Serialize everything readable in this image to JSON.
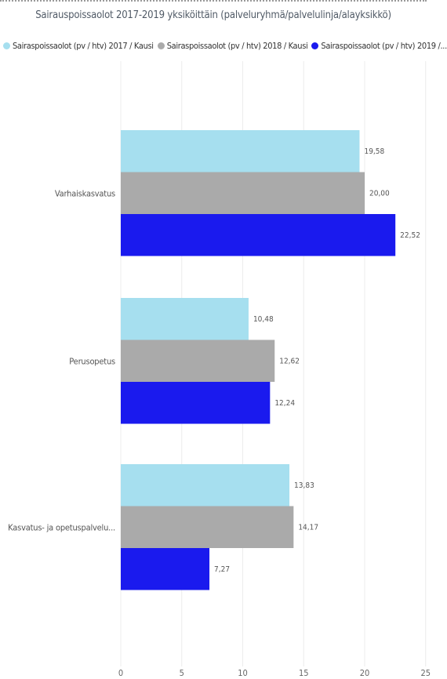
{
  "chart_data": {
    "type": "bar",
    "orientation": "horizontal",
    "title": "Sairauspoissaolot 2017-2019 yksiköittäin (palveluryhmä/palvelulinja/alayksikkö)",
    "categories": [
      "Varhaiskasvatus",
      "Perusopetus",
      "Kasvatus- ja opetuspalvelu..."
    ],
    "series": [
      {
        "name": "Sairaspoissaolot (pv / htv) 2017 / Kausi",
        "color": "#a6dfef",
        "values": [
          19.58,
          10.48,
          13.83
        ],
        "labels": [
          "19,58",
          "10,48",
          "13,83"
        ]
      },
      {
        "name": "Sairaspoissaolot (pv / htv) 2018 / Kausi",
        "color": "#aaaaaa",
        "values": [
          20.0,
          12.62,
          14.17
        ],
        "labels": [
          "20,00",
          "12,62",
          "14,17"
        ]
      },
      {
        "name": "Sairaspoissaolot (pv / htv) 2019 /...",
        "color": "#1a1aee",
        "values": [
          22.52,
          12.24,
          7.27
        ],
        "labels": [
          "22,52",
          "12,24",
          "7,27"
        ]
      }
    ],
    "xticks": [
      "0",
      "5",
      "10",
      "15",
      "20",
      "25"
    ],
    "xlim": [
      0,
      25
    ],
    "grid": true,
    "legend_position": "top-left"
  }
}
